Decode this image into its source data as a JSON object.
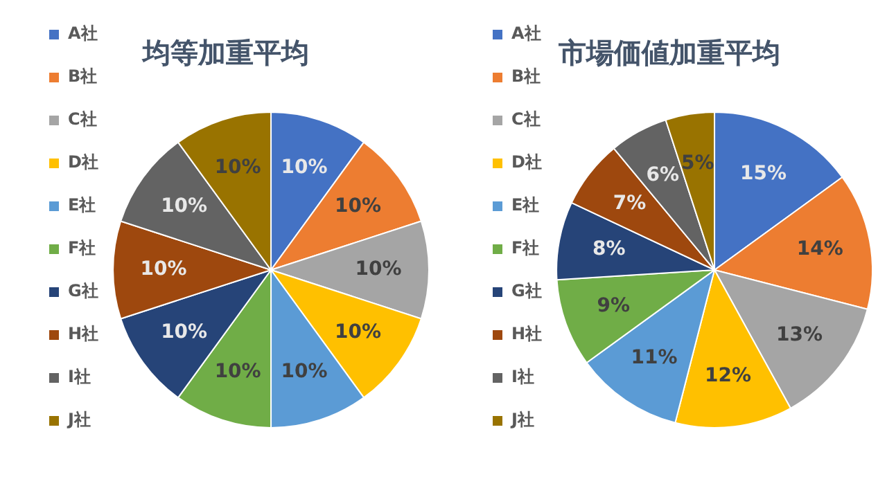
{
  "chart_data": [
    {
      "type": "pie",
      "title": "均等加重平均",
      "categories": [
        "A社",
        "B社",
        "C社",
        "D社",
        "E社",
        "F社",
        "G社",
        "H社",
        "I社",
        "J社"
      ],
      "values": [
        10,
        10,
        10,
        10,
        10,
        10,
        10,
        10,
        10,
        10
      ],
      "colors": [
        "#4472c4",
        "#ed7d31",
        "#a5a5a5",
        "#ffc000",
        "#5b9bd5",
        "#70ad47",
        "#264478",
        "#9e480e",
        "#636363",
        "#997300"
      ],
      "value_labels": [
        "10%",
        "10%",
        "10%",
        "10%",
        "10%",
        "10%",
        "10%",
        "10%",
        "10%",
        "10%"
      ],
      "legend": "left"
    },
    {
      "type": "pie",
      "title": "市場価値加重平均",
      "categories": [
        "A社",
        "B社",
        "C社",
        "D社",
        "E社",
        "F社",
        "G社",
        "H社",
        "I社",
        "J社"
      ],
      "values": [
        15,
        14,
        13,
        12,
        11,
        9,
        8,
        7,
        6,
        5
      ],
      "colors": [
        "#4472c4",
        "#ed7d31",
        "#a5a5a5",
        "#ffc000",
        "#5b9bd5",
        "#70ad47",
        "#264478",
        "#9e480e",
        "#636363",
        "#997300"
      ],
      "value_labels": [
        "15%",
        "14%",
        "13%",
        "12%",
        "11%",
        "9%",
        "8%",
        "7%",
        "6%",
        "5%"
      ],
      "legend": "left"
    }
  ]
}
